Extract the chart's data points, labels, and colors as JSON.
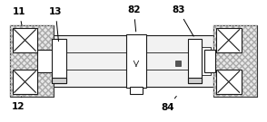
{
  "bg_color": "#ffffff",
  "lc": "#1a1a1a",
  "fig_width": 2.94,
  "fig_height": 1.35,
  "dpi": 100
}
